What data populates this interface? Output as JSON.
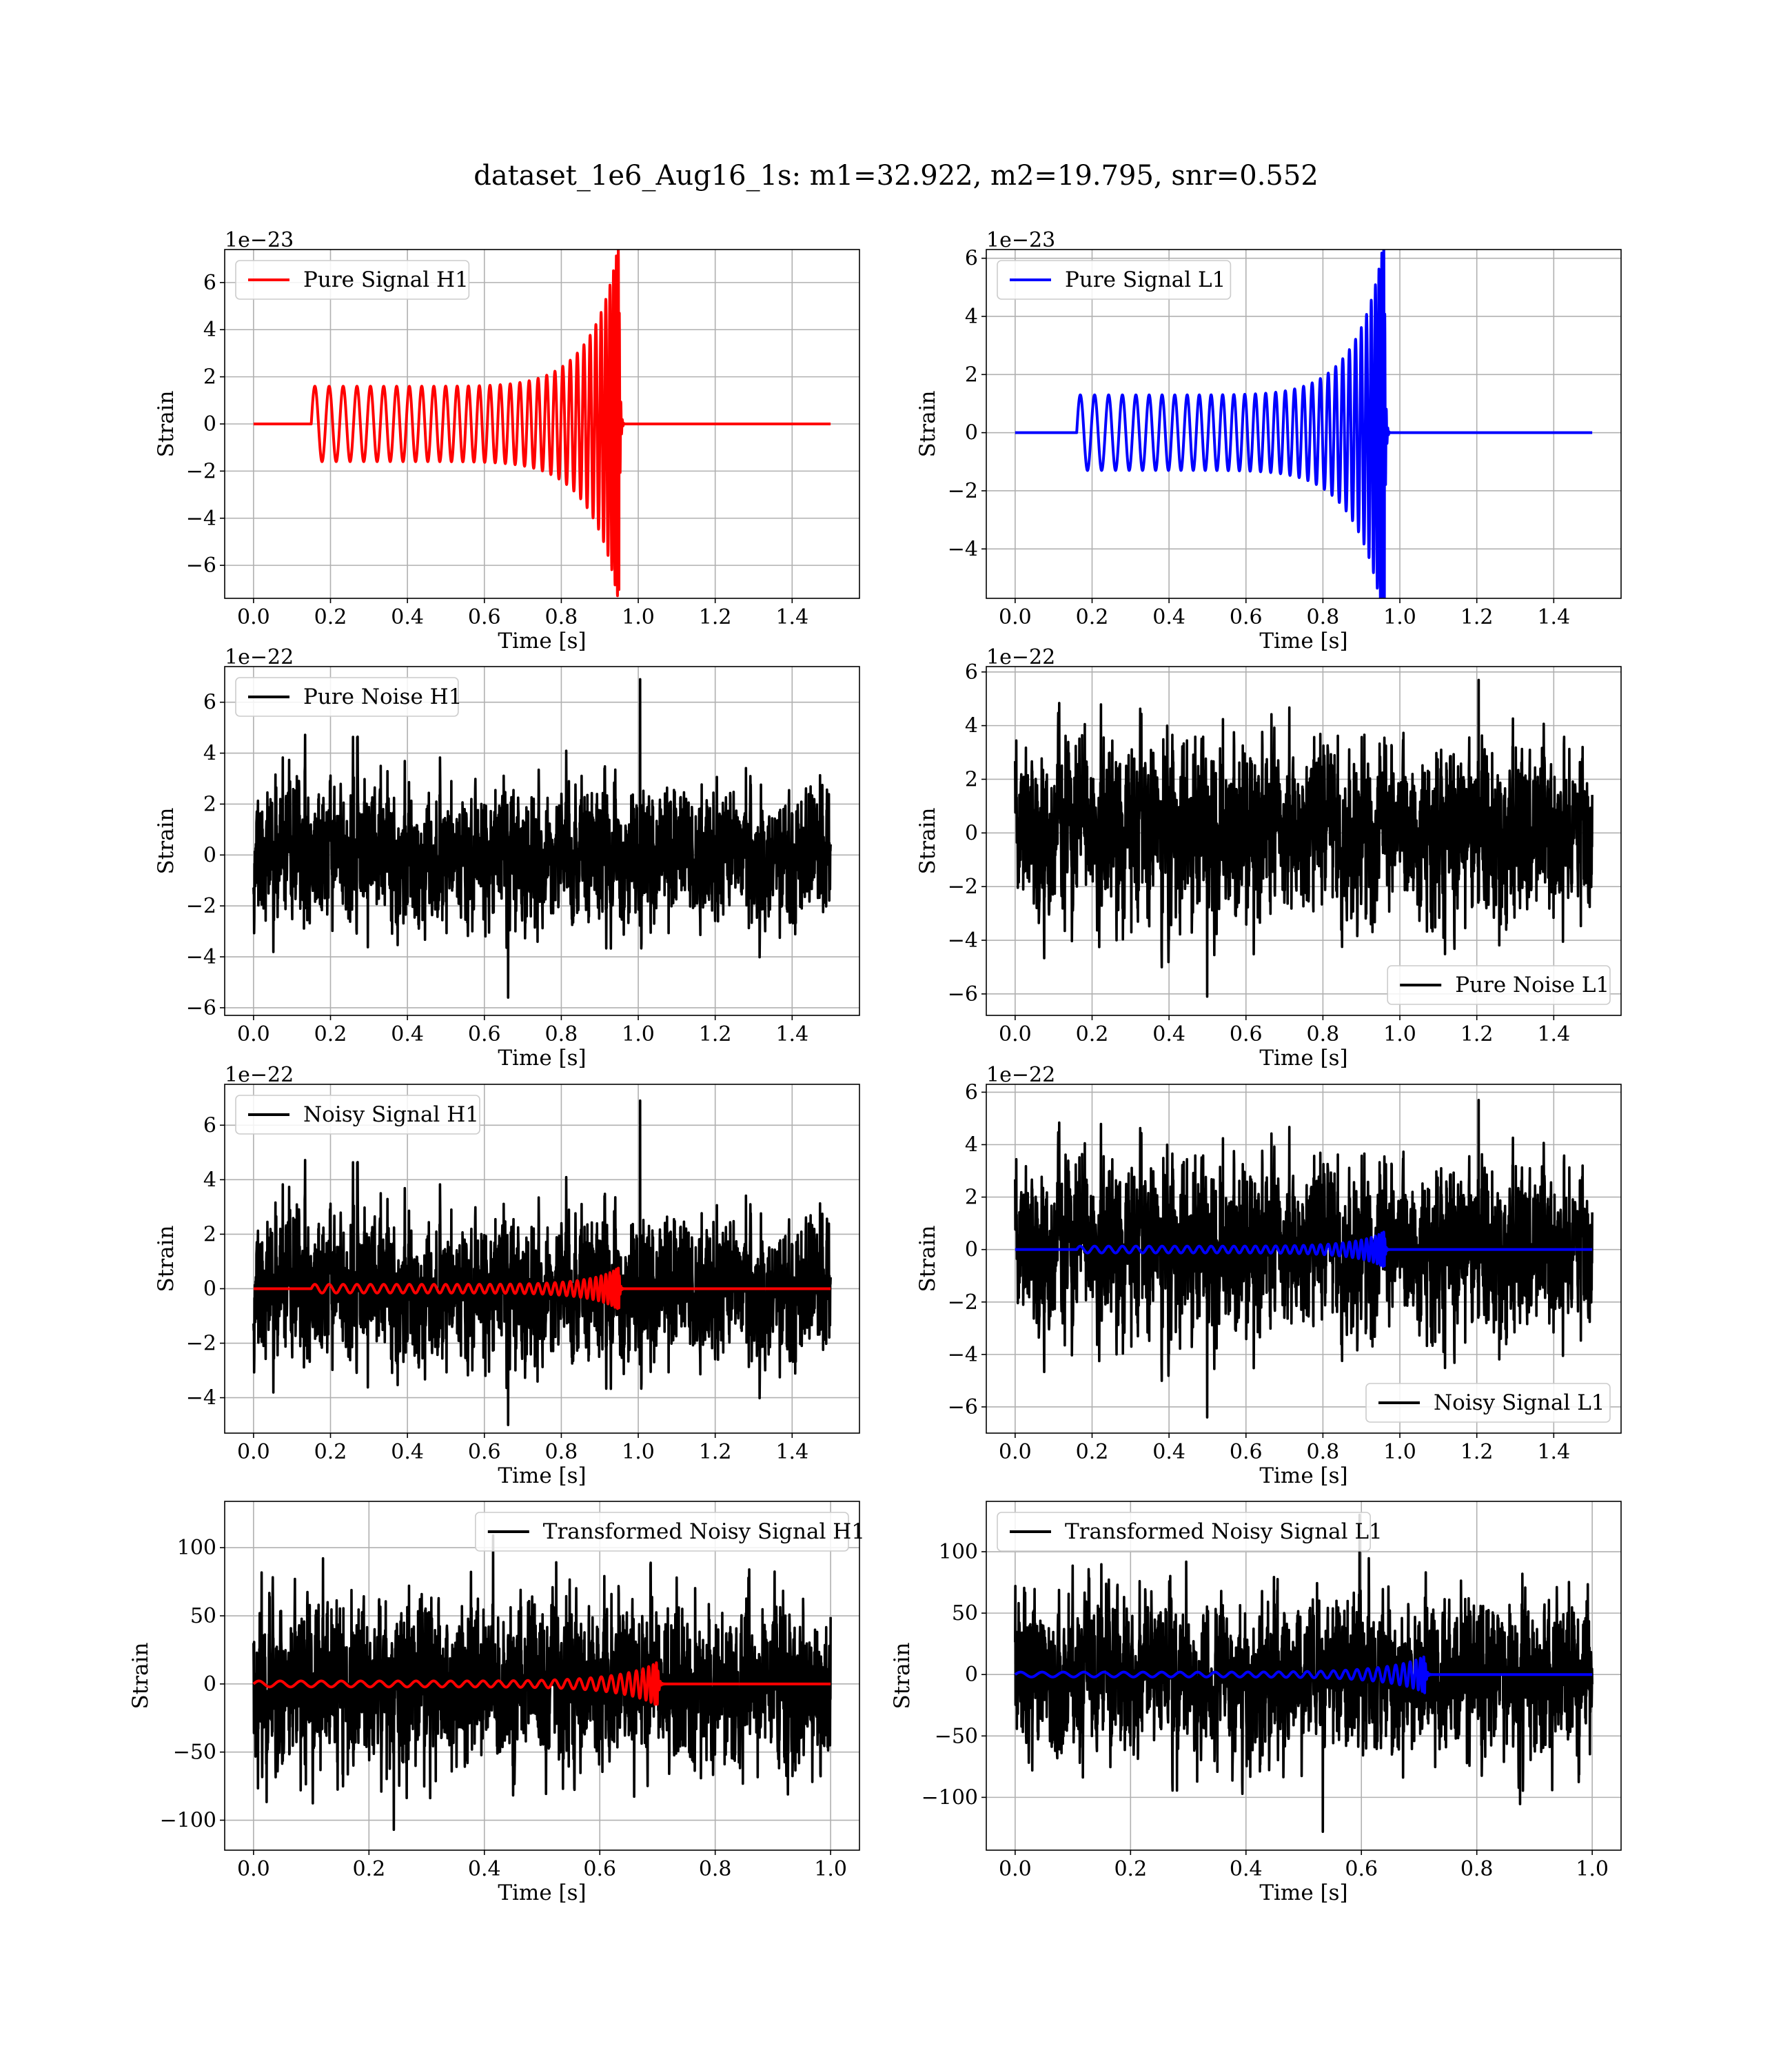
{
  "figure": {
    "title": "dataset_1e6_Aug16_1s: m1=32.922, m2=19.795, snr=0.552"
  },
  "colors": {
    "h1_signal": "#ff0000",
    "l1_signal": "#0000ff",
    "noise": "#000000",
    "grid": "#b0b0b0"
  },
  "chart_data": [
    {
      "id": "pure-signal-h1",
      "type": "line",
      "xlabel": "Time [s]",
      "ylabel": "Strain",
      "offset_text": "1e−23",
      "xlim": [
        -0.075,
        1.575
      ],
      "ylim": [
        -7.4,
        7.4
      ],
      "xticks": [
        0.0,
        0.2,
        0.4,
        0.6,
        0.8,
        1.0,
        1.2,
        1.4
      ],
      "xtick_labels": [
        "0.0",
        "0.2",
        "0.4",
        "0.6",
        "0.8",
        "1.0",
        "1.2",
        "1.4"
      ],
      "yticks": [
        -6,
        -4,
        -2,
        0,
        2,
        4,
        6
      ],
      "ytick_labels": [
        "−6",
        "−4",
        "−2",
        "0",
        "2",
        "4",
        "6"
      ],
      "grid": true,
      "legend_loc": "upper left",
      "series": [
        {
          "name": "Pure Signal H1",
          "color": "#ff0000",
          "kind": "chirp",
          "start": 0.15,
          "merge": 0.95,
          "x_end": 1.5,
          "base_amp": 1.6,
          "peak_amp": 6.8,
          "cycles": 34
        }
      ]
    },
    {
      "id": "pure-signal-l1",
      "type": "line",
      "xlabel": "Time [s]",
      "ylabel": "Strain",
      "offset_text": "1e−23",
      "xlim": [
        -0.075,
        1.575
      ],
      "ylim": [
        -5.7,
        6.3
      ],
      "xticks": [
        0.0,
        0.2,
        0.4,
        0.6,
        0.8,
        1.0,
        1.2,
        1.4
      ],
      "xtick_labels": [
        "0.0",
        "0.2",
        "0.4",
        "0.6",
        "0.8",
        "1.0",
        "1.2",
        "1.4"
      ],
      "yticks": [
        -4,
        -2,
        0,
        2,
        4,
        6
      ],
      "ytick_labels": [
        "−4",
        "−2",
        "0",
        "2",
        "4",
        "6"
      ],
      "grid": true,
      "legend_loc": "upper left",
      "series": [
        {
          "name": "Pure Signal L1",
          "color": "#0000ff",
          "kind": "chirp",
          "start": 0.16,
          "merge": 0.96,
          "x_end": 1.5,
          "base_amp": 1.3,
          "peak_amp": 5.9,
          "cycles": 34
        }
      ]
    },
    {
      "id": "pure-noise-h1",
      "type": "line",
      "xlabel": "Time [s]",
      "ylabel": "Strain",
      "offset_text": "1e−22",
      "xlim": [
        -0.075,
        1.575
      ],
      "ylim": [
        -6.3,
        7.4
      ],
      "xticks": [
        0.0,
        0.2,
        0.4,
        0.6,
        0.8,
        1.0,
        1.2,
        1.4
      ],
      "xtick_labels": [
        "0.0",
        "0.2",
        "0.4",
        "0.6",
        "0.8",
        "1.0",
        "1.2",
        "1.4"
      ],
      "yticks": [
        -6,
        -4,
        -2,
        0,
        2,
        4,
        6
      ],
      "ytick_labels": [
        "−6",
        "−4",
        "−2",
        "0",
        "2",
        "4",
        "6"
      ],
      "grid": true,
      "legend_loc": "upper left",
      "series": [
        {
          "name": "Pure Noise H1",
          "color": "#000000",
          "kind": "noise",
          "x_end": 1.5,
          "sigma": 1.25,
          "spike_max": 6.9,
          "spike_min": -5.6,
          "seed": 11
        }
      ]
    },
    {
      "id": "pure-noise-l1",
      "type": "line",
      "xlabel": "Time [s]",
      "ylabel": "Strain",
      "offset_text": "1e−22",
      "xlim": [
        -0.075,
        1.575
      ],
      "ylim": [
        -6.8,
        6.2
      ],
      "xticks": [
        0.0,
        0.2,
        0.4,
        0.6,
        0.8,
        1.0,
        1.2,
        1.4
      ],
      "xtick_labels": [
        "0.0",
        "0.2",
        "0.4",
        "0.6",
        "0.8",
        "1.0",
        "1.2",
        "1.4"
      ],
      "yticks": [
        -6,
        -4,
        -2,
        0,
        2,
        4,
        6
      ],
      "ytick_labels": [
        "−6",
        "−4",
        "−2",
        "0",
        "2",
        "4",
        "6"
      ],
      "grid": true,
      "legend_loc": "lower right",
      "series": [
        {
          "name": "Pure Noise L1",
          "color": "#000000",
          "kind": "noise",
          "x_end": 1.5,
          "sigma": 1.5,
          "spike_max": 5.7,
          "spike_min": -6.1,
          "seed": 23
        }
      ]
    },
    {
      "id": "noisy-signal-h1",
      "type": "line",
      "xlabel": "Time [s]",
      "ylabel": "Strain",
      "offset_text": "1e−22",
      "xlim": [
        -0.075,
        1.575
      ],
      "ylim": [
        -5.3,
        7.5
      ],
      "xticks": [
        0.0,
        0.2,
        0.4,
        0.6,
        0.8,
        1.0,
        1.2,
        1.4
      ],
      "xtick_labels": [
        "0.0",
        "0.2",
        "0.4",
        "0.6",
        "0.8",
        "1.0",
        "1.2",
        "1.4"
      ],
      "yticks": [
        -4,
        -2,
        0,
        2,
        4,
        6
      ],
      "ytick_labels": [
        "−4",
        "−2",
        "0",
        "2",
        "4",
        "6"
      ],
      "grid": true,
      "legend_loc": "upper left",
      "series": [
        {
          "name": "Noisy Signal H1",
          "color": "#000000",
          "kind": "noise",
          "x_end": 1.5,
          "sigma": 1.25,
          "spike_max": 6.9,
          "spike_min": -5.0,
          "seed": 11
        },
        {
          "name": "",
          "color": "#ff0000",
          "kind": "chirp",
          "start": 0.15,
          "merge": 0.95,
          "x_end": 1.5,
          "base_amp": 0.16,
          "peak_amp": 0.68,
          "cycles": 34
        }
      ]
    },
    {
      "id": "noisy-signal-l1",
      "type": "line",
      "xlabel": "Time [s]",
      "ylabel": "Strain",
      "offset_text": "1e−22",
      "xlim": [
        -0.075,
        1.575
      ],
      "ylim": [
        -7.0,
        6.3
      ],
      "xticks": [
        0.0,
        0.2,
        0.4,
        0.6,
        0.8,
        1.0,
        1.2,
        1.4
      ],
      "xtick_labels": [
        "0.0",
        "0.2",
        "0.4",
        "0.6",
        "0.8",
        "1.0",
        "1.2",
        "1.4"
      ],
      "yticks": [
        -6,
        -4,
        -2,
        0,
        2,
        4,
        6
      ],
      "ytick_labels": [
        "−6",
        "−4",
        "−2",
        "0",
        "2",
        "4",
        "6"
      ],
      "grid": true,
      "legend_loc": "lower right",
      "series": [
        {
          "name": "Noisy Signal L1",
          "color": "#000000",
          "kind": "noise",
          "x_end": 1.5,
          "sigma": 1.5,
          "spike_max": 5.7,
          "spike_min": -6.4,
          "seed": 23
        },
        {
          "name": "",
          "color": "#0000ff",
          "kind": "chirp",
          "start": 0.16,
          "merge": 0.96,
          "x_end": 1.5,
          "base_amp": 0.13,
          "peak_amp": 0.6,
          "cycles": 34
        }
      ]
    },
    {
      "id": "transformed-noisy-signal-h1",
      "type": "line",
      "xlabel": "Time [s]",
      "ylabel": "Strain",
      "offset_text": "",
      "xlim": [
        -0.05,
        1.05
      ],
      "ylim": [
        -122,
        134
      ],
      "xticks": [
        0.0,
        0.2,
        0.4,
        0.6,
        0.8,
        1.0
      ],
      "xtick_labels": [
        "0.0",
        "0.2",
        "0.4",
        "0.6",
        "0.8",
        "1.0"
      ],
      "yticks": [
        -100,
        -50,
        0,
        50,
        100
      ],
      "ytick_labels": [
        "−100",
        "−50",
        "0",
        "50",
        "100"
      ],
      "grid": true,
      "legend_loc": "upper right",
      "series": [
        {
          "name": "Transformed Noisy Signal H1",
          "color": "#000000",
          "kind": "noise",
          "x_end": 1.0,
          "sigma": 29,
          "spike_max": 109,
          "spike_min": -107,
          "seed": 37
        },
        {
          "name": "",
          "color": "#ff0000",
          "kind": "chirp",
          "start": 0.0,
          "merge": 0.7,
          "x_end": 1.0,
          "base_amp": 2.2,
          "peak_amp": 14,
          "cycles": 30
        }
      ]
    },
    {
      "id": "transformed-noisy-signal-l1",
      "type": "line",
      "xlabel": "Time [s]",
      "ylabel": "Strain",
      "offset_text": "",
      "xlim": [
        -0.05,
        1.05
      ],
      "ylim": [
        -143,
        141
      ],
      "xticks": [
        0.0,
        0.2,
        0.4,
        0.6,
        0.8,
        1.0
      ],
      "xtick_labels": [
        "0.0",
        "0.2",
        "0.4",
        "0.6",
        "0.8",
        "1.0"
      ],
      "yticks": [
        -100,
        -50,
        0,
        50,
        100
      ],
      "ytick_labels": [
        "−100",
        "−50",
        "0",
        "50",
        "100"
      ],
      "grid": true,
      "legend_loc": "upper left",
      "series": [
        {
          "name": "Transformed Noisy Signal L1",
          "color": "#000000",
          "kind": "noise",
          "x_end": 1.0,
          "sigma": 29,
          "spike_max": 130,
          "spike_min": -128,
          "seed": 53
        },
        {
          "name": "",
          "color": "#0000ff",
          "kind": "chirp",
          "start": 0.0,
          "merge": 0.71,
          "x_end": 1.0,
          "base_amp": 2.0,
          "peak_amp": 13,
          "cycles": 30
        }
      ]
    }
  ]
}
